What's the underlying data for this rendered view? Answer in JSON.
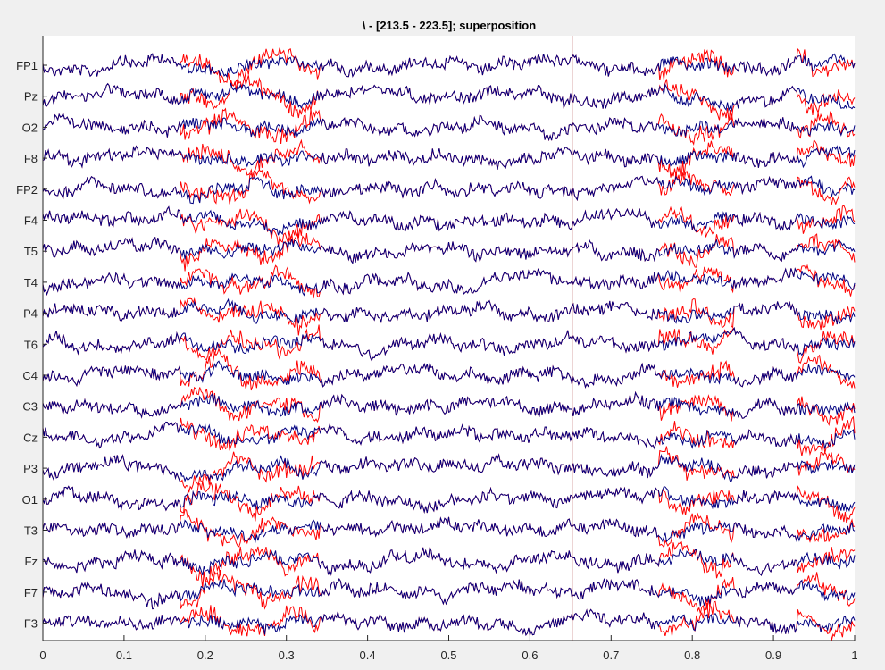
{
  "chart_data": {
    "type": "line",
    "title": "\\ - [213.5 - 223.5]; superposition",
    "xlabel": "",
    "ylabel": "",
    "xlim": [
      0,
      1
    ],
    "xticks": [
      "0",
      "0.1",
      "0.2",
      "0.3",
      "0.4",
      "0.5",
      "0.6",
      "0.7",
      "0.8",
      "0.9",
      "1"
    ],
    "xtick_values": [
      0,
      0.1,
      0.2,
      0.3,
      0.4,
      0.5,
      0.6,
      0.7,
      0.8,
      0.9,
      1
    ],
    "channels": [
      "FP1",
      "Pz",
      "O2",
      "F8",
      "FP2",
      "F4",
      "T5",
      "T4",
      "P4",
      "T6",
      "C4",
      "C3",
      "Cz",
      "P3",
      "O1",
      "T3",
      "Fz",
      "F7",
      "F3"
    ],
    "series": [
      {
        "color": "#ff0000",
        "bursts": [
          [
            0.17,
            0.34
          ],
          [
            0.76,
            0.85
          ],
          [
            0.93,
            1.0
          ]
        ]
      },
      {
        "color": "#000080"
      }
    ],
    "cursor_x": 0.652,
    "cursor_color": "#8b0000",
    "grid": false
  },
  "colors": {
    "background": "#f0f0f0",
    "axes": "#ffffff",
    "axis_line": "#262626"
  }
}
